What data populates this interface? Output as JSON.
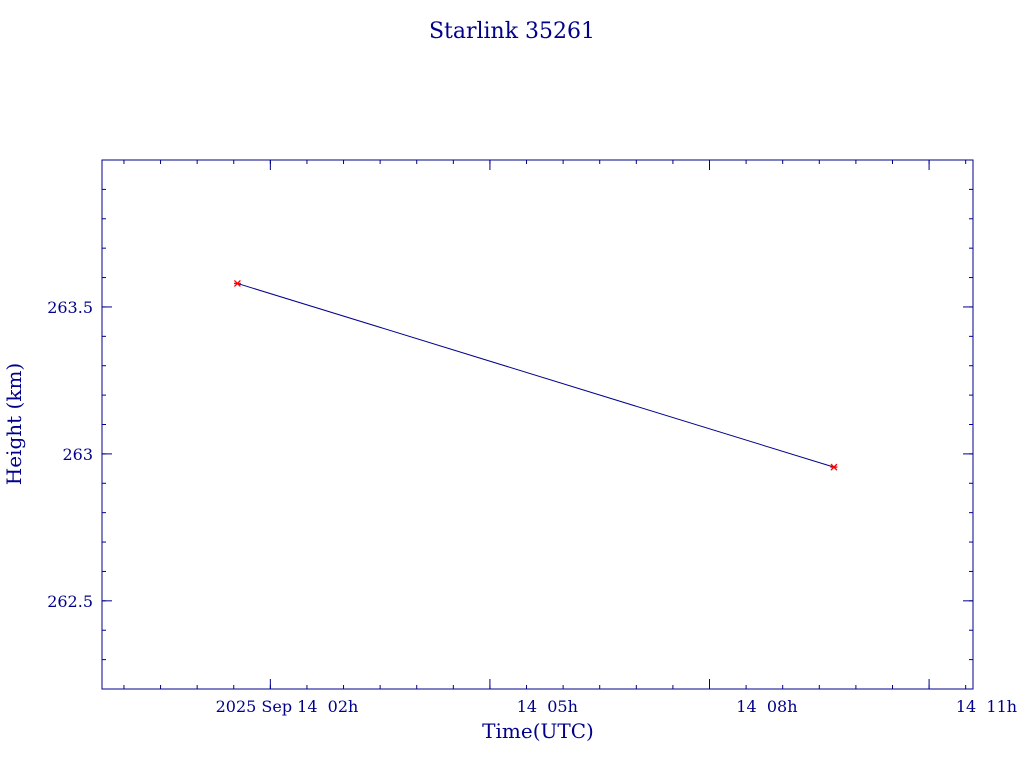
{
  "chart_data": {
    "type": "line",
    "title": "Starlink 35261",
    "xlabel": "Time(UTC)",
    "ylabel": "Height (km)",
    "x_tick_labels": [
      "2025 Sep 14  02h",
      "14  05h",
      "14  08h",
      "14  11h"
    ],
    "x_tick_values_hours": [
      2,
      5,
      8,
      11
    ],
    "y_tick_labels": [
      "262.5",
      "263",
      "263.5"
    ],
    "y_tick_values": [
      262.5,
      263.0,
      263.5
    ],
    "xlim_hours": [
      -0.3,
      11.6
    ],
    "ylim": [
      262.2,
      264.0
    ],
    "grid": false,
    "series": [
      {
        "x_hours": [
          1.55,
          9.7
        ],
        "x": [
          "2025-09-14 01:33",
          "2025-09-14 09:42"
        ],
        "y": [
          263.58,
          262.955
        ]
      }
    ],
    "colors": {
      "axis": "#00008b",
      "line": "#00008b",
      "marker": "#ff0000"
    }
  }
}
